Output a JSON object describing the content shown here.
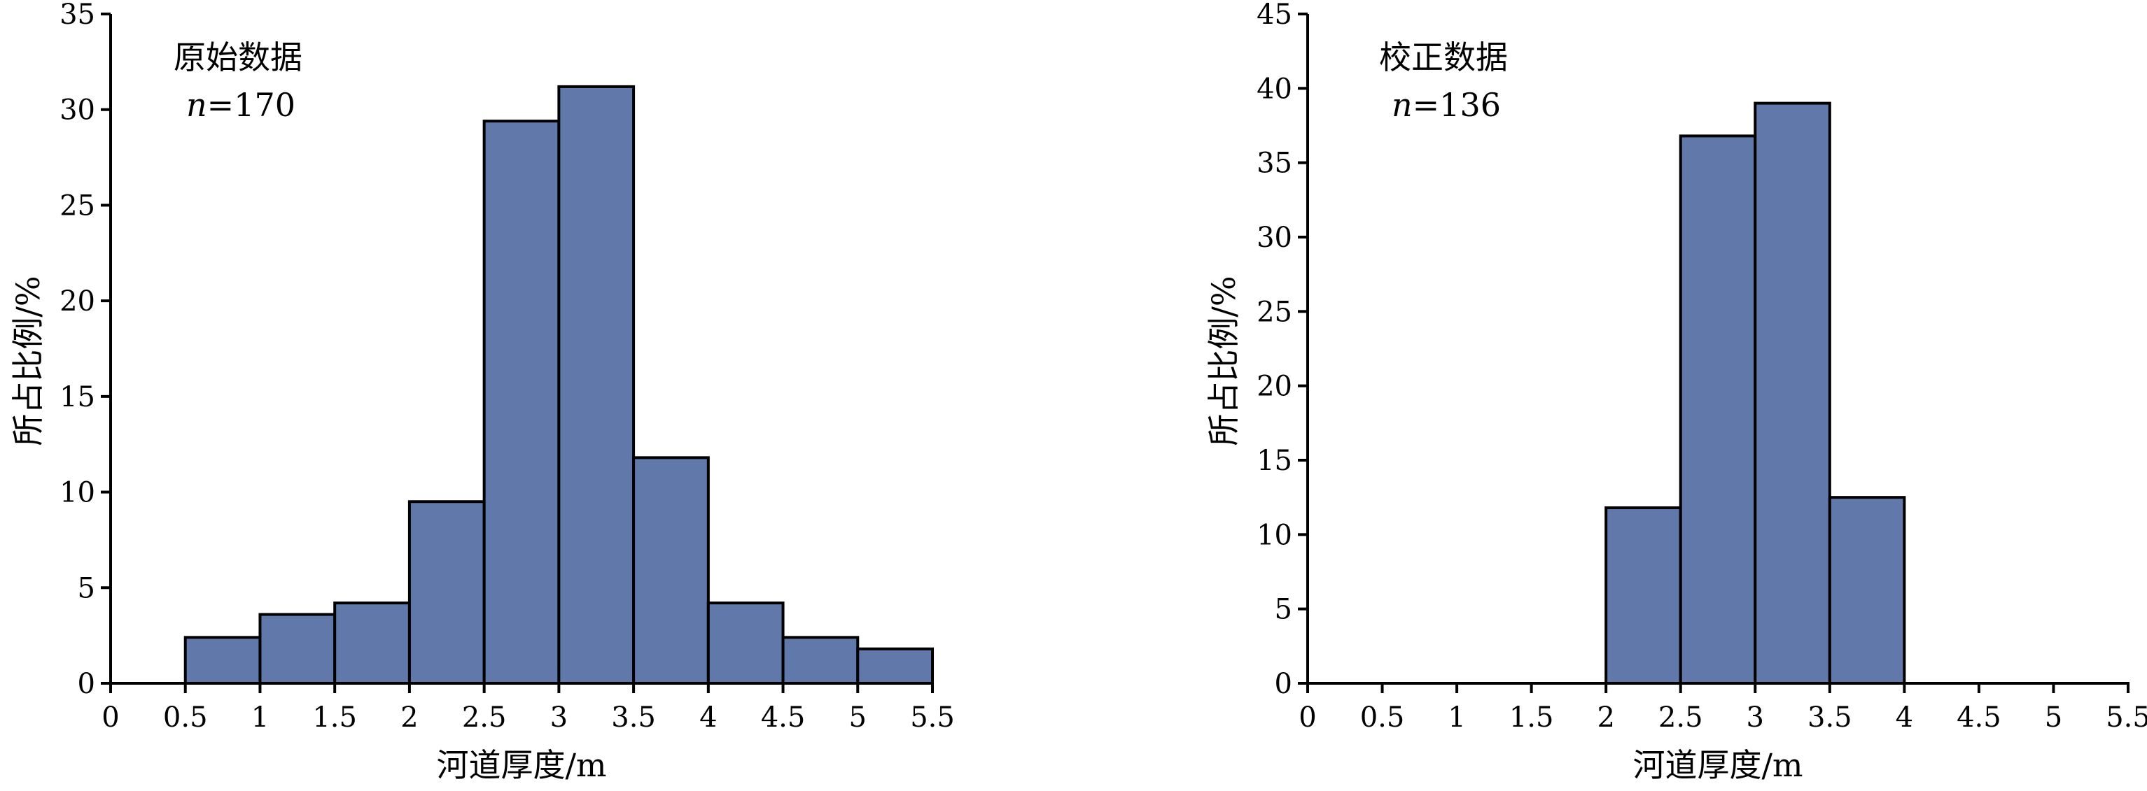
{
  "chart_data": [
    {
      "type": "bar",
      "title": "",
      "annotation": {
        "label": "原始数据",
        "n_symbol": "n",
        "n_text": "=170"
      },
      "xlabel": "河道厚度/m",
      "ylabel": "所占比例/%",
      "xlim": [
        0,
        5.5
      ],
      "ylim": [
        0,
        35
      ],
      "xticks": [
        0,
        0.5,
        1,
        1.5,
        2,
        2.5,
        3,
        3.5,
        4,
        4.5,
        5,
        5.5
      ],
      "yticks": [
        0,
        5,
        10,
        15,
        20,
        25,
        30,
        35
      ],
      "bin_width": 0.5,
      "bins": [
        {
          "x0": 0.5,
          "value": 2.4
        },
        {
          "x0": 1.0,
          "value": 3.6
        },
        {
          "x0": 1.5,
          "value": 4.2
        },
        {
          "x0": 2.0,
          "value": 9.5
        },
        {
          "x0": 2.5,
          "value": 29.4
        },
        {
          "x0": 3.0,
          "value": 31.2
        },
        {
          "x0": 3.5,
          "value": 11.8
        },
        {
          "x0": 4.0,
          "value": 4.2
        },
        {
          "x0": 4.5,
          "value": 2.4
        },
        {
          "x0": 5.0,
          "value": 1.8
        }
      ],
      "bar_color": "#6079aa",
      "grid": false
    },
    {
      "type": "bar",
      "title": "",
      "annotation": {
        "label": "校正数据",
        "n_symbol": "n",
        "n_text": "=136"
      },
      "xlabel": "河道厚度/m",
      "ylabel": "所占比例/%",
      "xlim": [
        0,
        5.5
      ],
      "ylim": [
        0,
        45
      ],
      "xticks": [
        0,
        0.5,
        1,
        1.5,
        2,
        2.5,
        3,
        3.5,
        4,
        4.5,
        5,
        5.5
      ],
      "yticks": [
        0,
        5,
        10,
        15,
        20,
        25,
        30,
        35,
        40,
        45
      ],
      "bin_width": 0.5,
      "bins": [
        {
          "x0": 2.0,
          "value": 11.8
        },
        {
          "x0": 2.5,
          "value": 36.8
        },
        {
          "x0": 3.0,
          "value": 39.0
        },
        {
          "x0": 3.5,
          "value": 12.5
        }
      ],
      "bar_color": "#6079aa",
      "grid": false
    }
  ]
}
